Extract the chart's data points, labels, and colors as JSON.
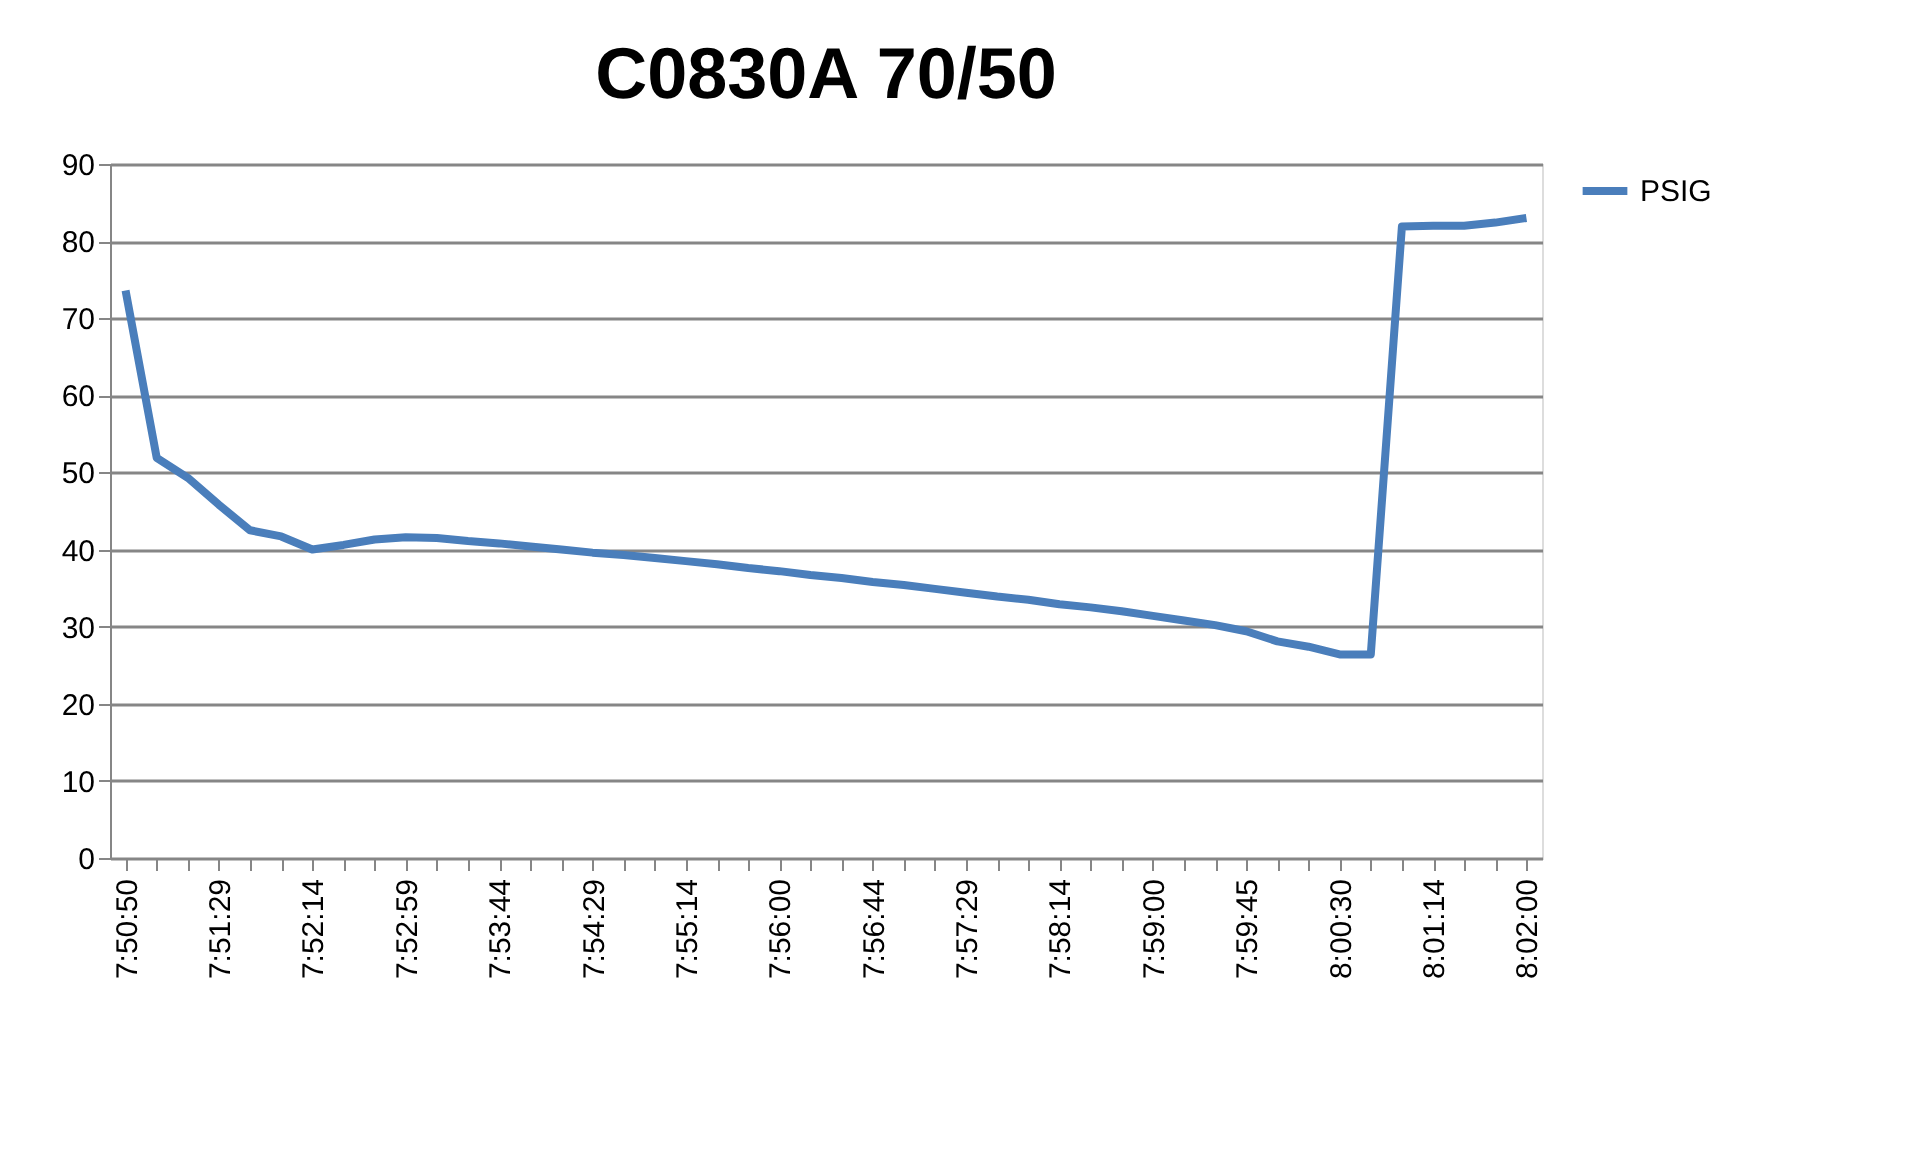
{
  "chart_data": {
    "type": "line",
    "title": "C0830A 70/50",
    "categories": [
      "7:50:50",
      null,
      null,
      "7:51:29",
      null,
      null,
      "7:52:14",
      null,
      null,
      "7:52:59",
      null,
      null,
      "7:53:44",
      null,
      null,
      "7:54:29",
      null,
      null,
      "7:55:14",
      null,
      null,
      "7:56:00",
      null,
      null,
      "7:56:44",
      null,
      null,
      "7:57:29",
      null,
      null,
      "7:58:14",
      null,
      null,
      "7:59:00",
      null,
      null,
      "7:59:45",
      null,
      null,
      "8:00:30",
      null,
      null,
      "8:01:14",
      null,
      null,
      "8:02:00"
    ],
    "series": [
      {
        "name": "PSIG",
        "color": "#4a7ebb",
        "values": [
          73.6,
          51.9,
          49.3,
          45.8,
          42.5,
          41.7,
          40.0,
          40.6,
          41.3,
          41.6,
          41.5,
          41.1,
          40.8,
          40.4,
          40.0,
          39.6,
          39.3,
          38.9,
          38.5,
          38.1,
          37.6,
          37.2,
          36.7,
          36.3,
          35.8,
          35.4,
          34.9,
          34.4,
          33.9,
          33.5,
          32.9,
          32.5,
          32.0,
          31.4,
          30.8,
          30.2,
          29.4,
          28.1,
          27.4,
          26.4,
          26.4,
          81.9,
          82.0,
          82.0,
          82.4,
          83.0
        ]
      }
    ],
    "ylim": [
      0,
      90
    ],
    "yticks": [
      0,
      10,
      20,
      30,
      40,
      50,
      60,
      70,
      80,
      90
    ],
    "grid": "y",
    "legend": "right",
    "marker": "none",
    "line_style": "solid"
  }
}
